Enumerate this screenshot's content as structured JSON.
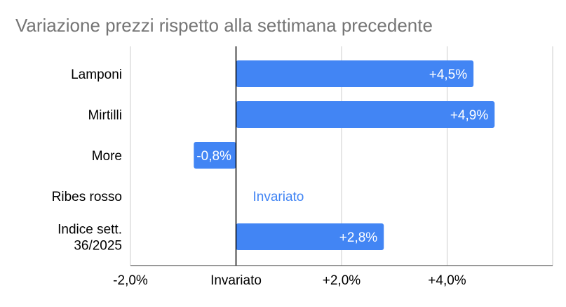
{
  "chart_data": {
    "type": "bar",
    "orientation": "horizontal",
    "title": "Variazione prezzi rispetto alla settimana precedente",
    "categories": [
      "Lamponi",
      "Mirtilli",
      "More",
      "Ribes rosso",
      "Indice sett. 36/2025"
    ],
    "category_lines": [
      [
        "Lamponi"
      ],
      [
        "Mirtilli"
      ],
      [
        "More"
      ],
      [
        "Ribes rosso"
      ],
      [
        "Indice sett.",
        "36/2025"
      ]
    ],
    "values": [
      4.5,
      4.9,
      -0.8,
      0.0,
      2.8
    ],
    "data_labels": [
      "+4,5%",
      "+4,9%",
      "-0,8%",
      "Invariato",
      "+2,8%"
    ],
    "xlim": [
      -2.0,
      6.0
    ],
    "x_ticks": [
      -2.0,
      0.0,
      2.0,
      4.0,
      6.0
    ],
    "x_tick_labels": [
      "-2,0%",
      "Invariato",
      "+2,0%",
      "+4,0%",
      ""
    ],
    "xlabel": "",
    "ylabel": "",
    "grid": true,
    "legend": "none",
    "colors": {
      "bar": "#4285f4",
      "inside_label": "#ffffff",
      "zero_label": "#4285f4",
      "title": "#757575",
      "text": "#000000",
      "gridline": "#cccccc",
      "zero_line": "#000000"
    }
  }
}
